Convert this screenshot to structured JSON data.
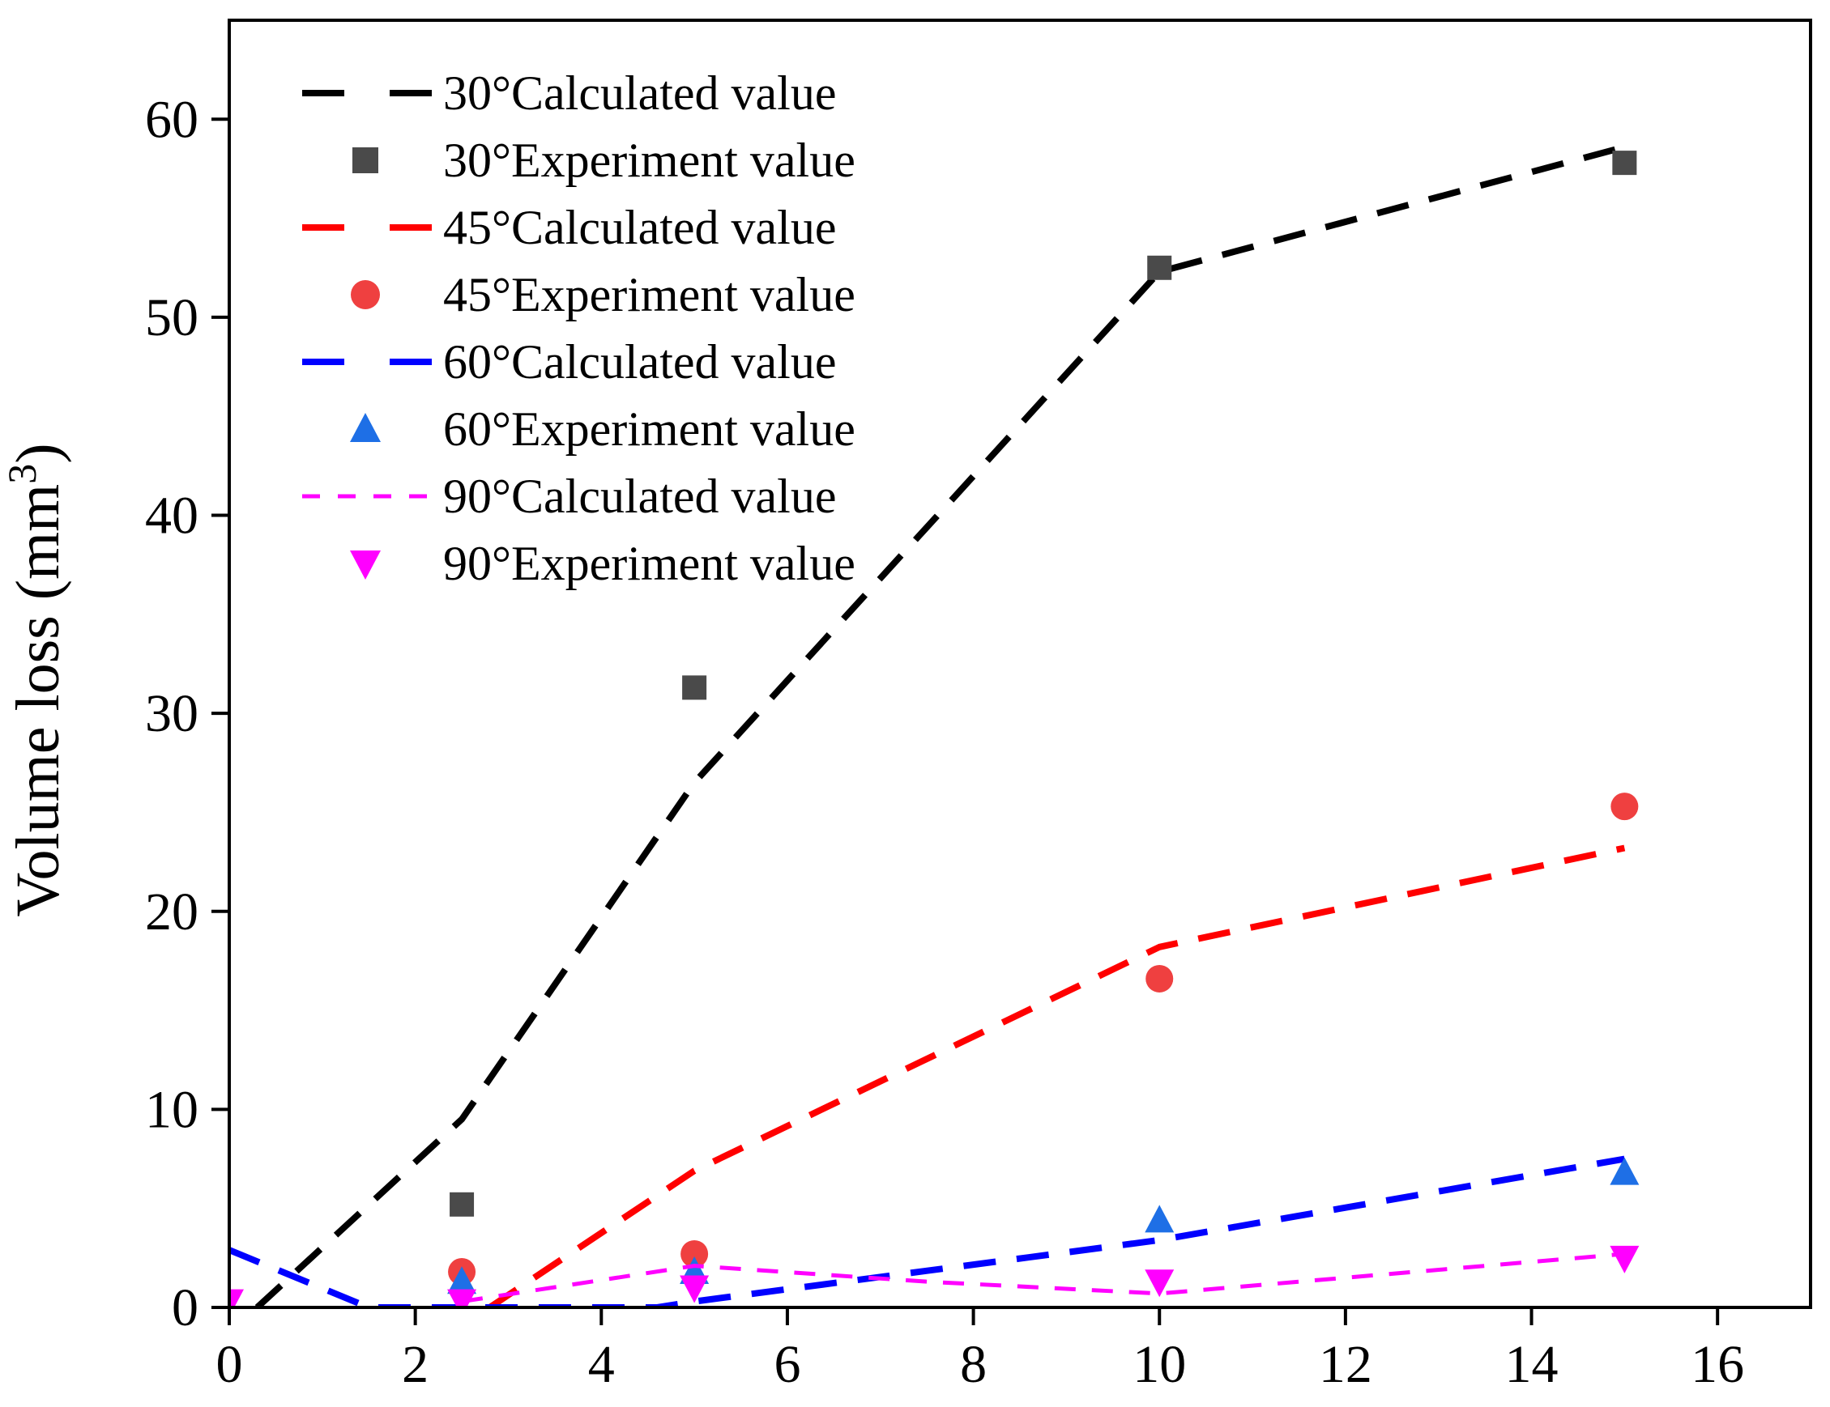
{
  "chart_data": {
    "type": "line",
    "title": "",
    "xlabel": "",
    "ylabel": "Volume loss (mm",
    "ylabel_superscript": "3",
    "ylabel_close": ")",
    "xlim": [
      0,
      17
    ],
    "ylim": [
      0,
      65
    ],
    "xticks": [
      0,
      2,
      4,
      6,
      8,
      10,
      12,
      14,
      16
    ],
    "yticks": [
      0,
      10,
      20,
      30,
      40,
      50,
      60
    ],
    "legend_position": "top-left",
    "series": [
      {
        "name": "30°Calculated value",
        "kind": "line",
        "color": "#000000",
        "points": [
          [
            0.3,
            0
          ],
          [
            2.5,
            9.5
          ],
          [
            5,
            26.5
          ],
          [
            10,
            52.3
          ],
          [
            15,
            58.6
          ]
        ]
      },
      {
        "name": "30°Experiment value",
        "kind": "marker",
        "marker": "square",
        "color": "#4a4a4a",
        "points": [
          [
            2.5,
            5.2
          ],
          [
            5,
            31.3
          ],
          [
            10,
            52.5
          ],
          [
            15,
            57.8
          ]
        ]
      },
      {
        "name": "45°Calculated value",
        "kind": "line",
        "color": "#ff0000",
        "points": [
          [
            2.8,
            0
          ],
          [
            5,
            6.9
          ],
          [
            10,
            18.2
          ],
          [
            15,
            23.2
          ]
        ]
      },
      {
        "name": "45°Experiment value",
        "kind": "marker",
        "marker": "circle",
        "color": "#ef4040",
        "points": [
          [
            2.5,
            1.8
          ],
          [
            5,
            2.7
          ],
          [
            10,
            16.6
          ],
          [
            15,
            25.3
          ]
        ]
      },
      {
        "name": "60°Calculated value",
        "kind": "line",
        "color": "#0000ff",
        "points": [
          [
            0,
            2.9
          ],
          [
            1.5,
            0
          ],
          [
            4.6,
            0
          ],
          [
            5,
            0.3
          ],
          [
            10,
            3.4
          ],
          [
            15,
            7.5
          ]
        ]
      },
      {
        "name": "60°Experiment value",
        "kind": "marker",
        "marker": "triangle-up",
        "color": "#1e6fe6",
        "points": [
          [
            2.5,
            1.3
          ],
          [
            5,
            1.8
          ],
          [
            10,
            4.4
          ],
          [
            15,
            6.8
          ]
        ]
      },
      {
        "name": "90°Calculated value",
        "kind": "line",
        "color": "#ff00ff",
        "points": [
          [
            2.5,
            0.3
          ],
          [
            5,
            2.1
          ],
          [
            7.5,
            1.3
          ],
          [
            10,
            0.7
          ],
          [
            15,
            2.7
          ]
        ]
      },
      {
        "name": "90°Experiment value",
        "kind": "marker",
        "marker": "triangle-down",
        "color": "#ff00ff",
        "points": [
          [
            0,
            0.3
          ],
          [
            2.5,
            0.3
          ],
          [
            5,
            1
          ],
          [
            10,
            1.3
          ],
          [
            15,
            2.5
          ]
        ]
      }
    ]
  }
}
